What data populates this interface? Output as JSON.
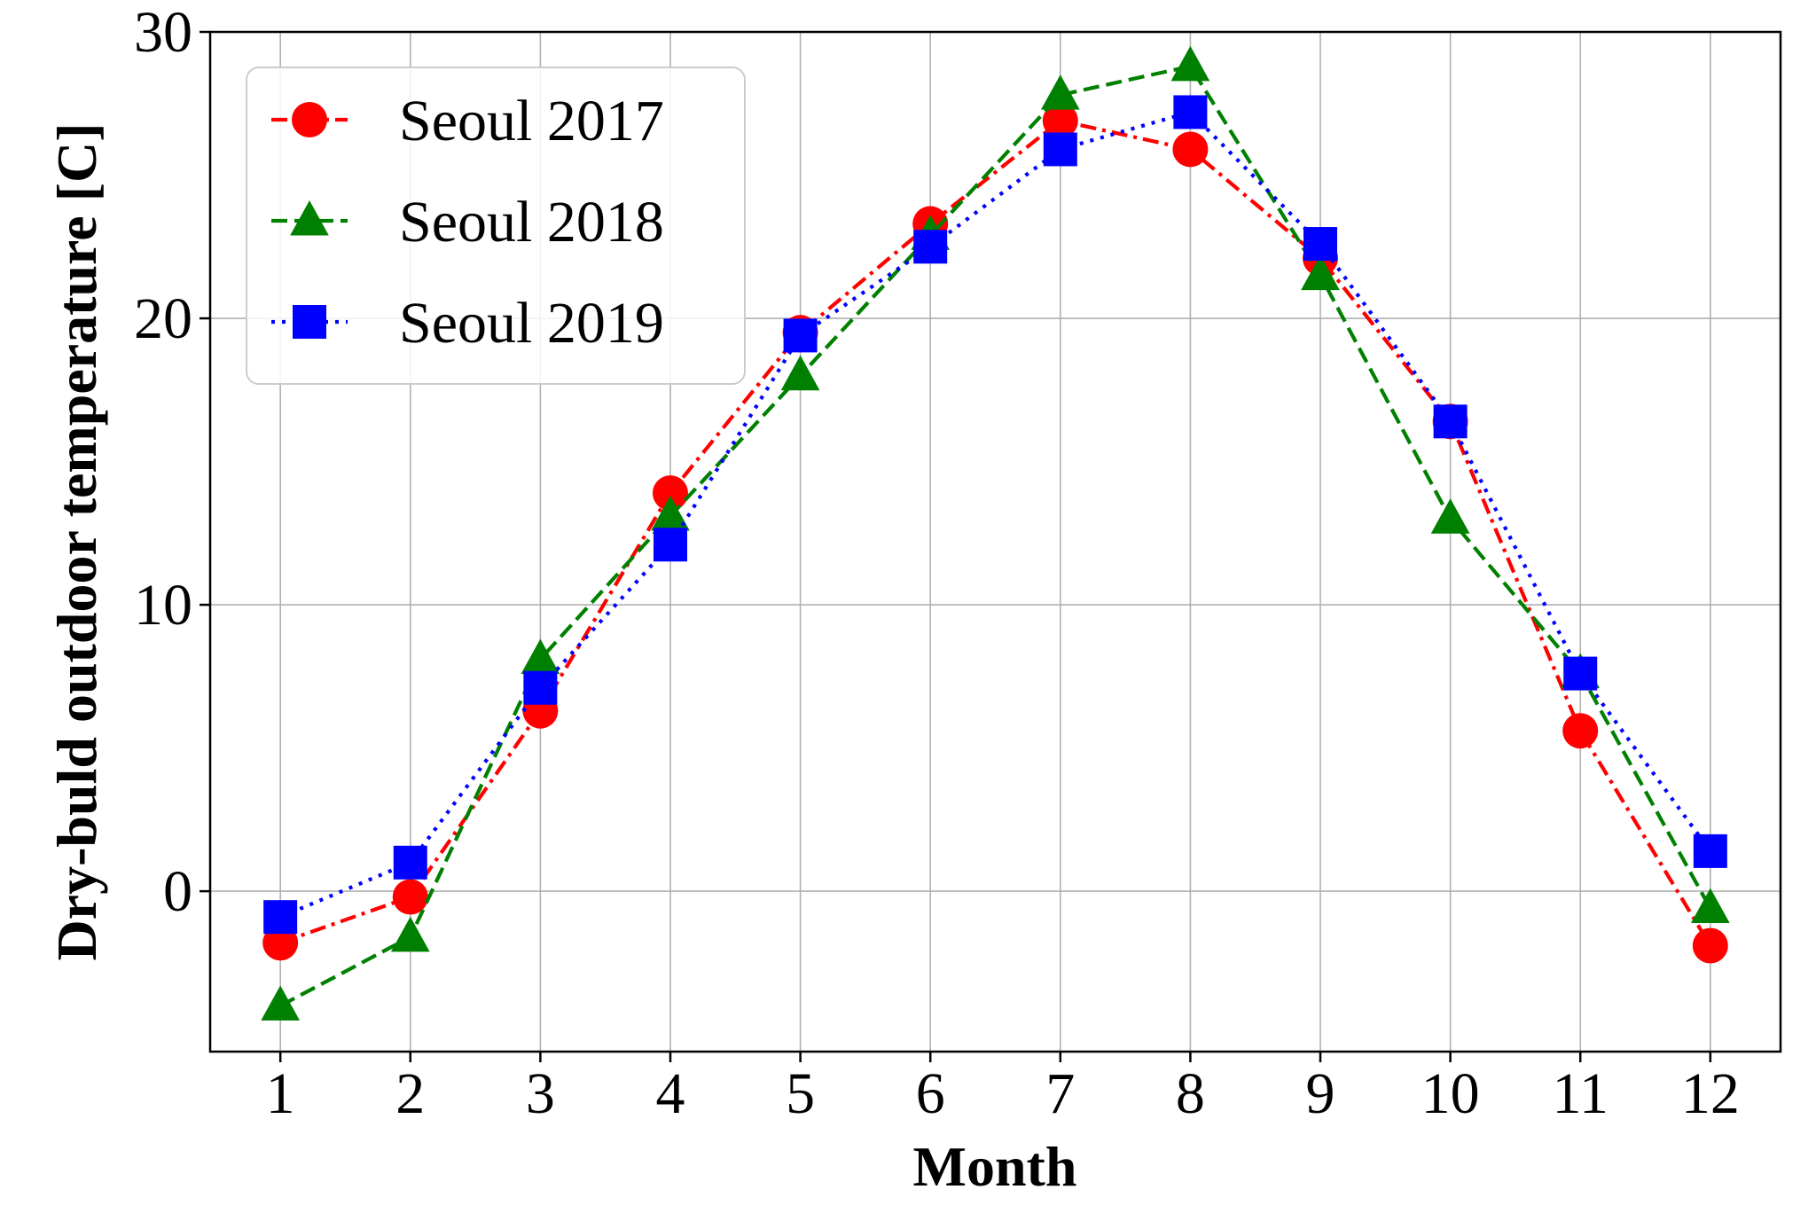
{
  "chart_data": {
    "type": "line",
    "xlabel": "Month",
    "ylabel": "Dry-buld outdoor temperature [C]",
    "x": [
      1,
      2,
      3,
      4,
      5,
      6,
      7,
      8,
      9,
      10,
      11,
      12
    ],
    "xticks": [
      "1",
      "2",
      "3",
      "4",
      "5",
      "6",
      "7",
      "8",
      "9",
      "10",
      "11",
      "12"
    ],
    "xlim": [
      0.46,
      12.54
    ],
    "ylim": [
      -5.6,
      30.0
    ],
    "yticks": [
      0,
      10,
      20,
      30
    ],
    "ytick_labels": [
      "0",
      "10",
      "20",
      "30"
    ],
    "grid": true,
    "legend_position": "upper-left",
    "series": [
      {
        "name": "Seoul 2017",
        "color": "#ff0000",
        "marker": "circle",
        "linestyle": "dashdot",
        "values": [
          -1.8,
          -0.2,
          6.3,
          13.9,
          19.5,
          23.3,
          26.9,
          25.9,
          22.1,
          16.4,
          5.6,
          -1.9
        ]
      },
      {
        "name": "Seoul 2018",
        "color": "#008000",
        "marker": "triangle",
        "linestyle": "dashed",
        "values": [
          -4.0,
          -1.6,
          8.1,
          13.1,
          18.0,
          22.9,
          27.8,
          28.8,
          21.5,
          13.0,
          7.6,
          -0.6
        ]
      },
      {
        "name": "Seoul 2019",
        "color": "#0000ff",
        "marker": "square",
        "linestyle": "dotted",
        "values": [
          -0.9,
          1.0,
          7.1,
          12.1,
          19.4,
          22.5,
          25.9,
          27.2,
          22.6,
          16.4,
          7.6,
          1.4
        ]
      }
    ]
  }
}
